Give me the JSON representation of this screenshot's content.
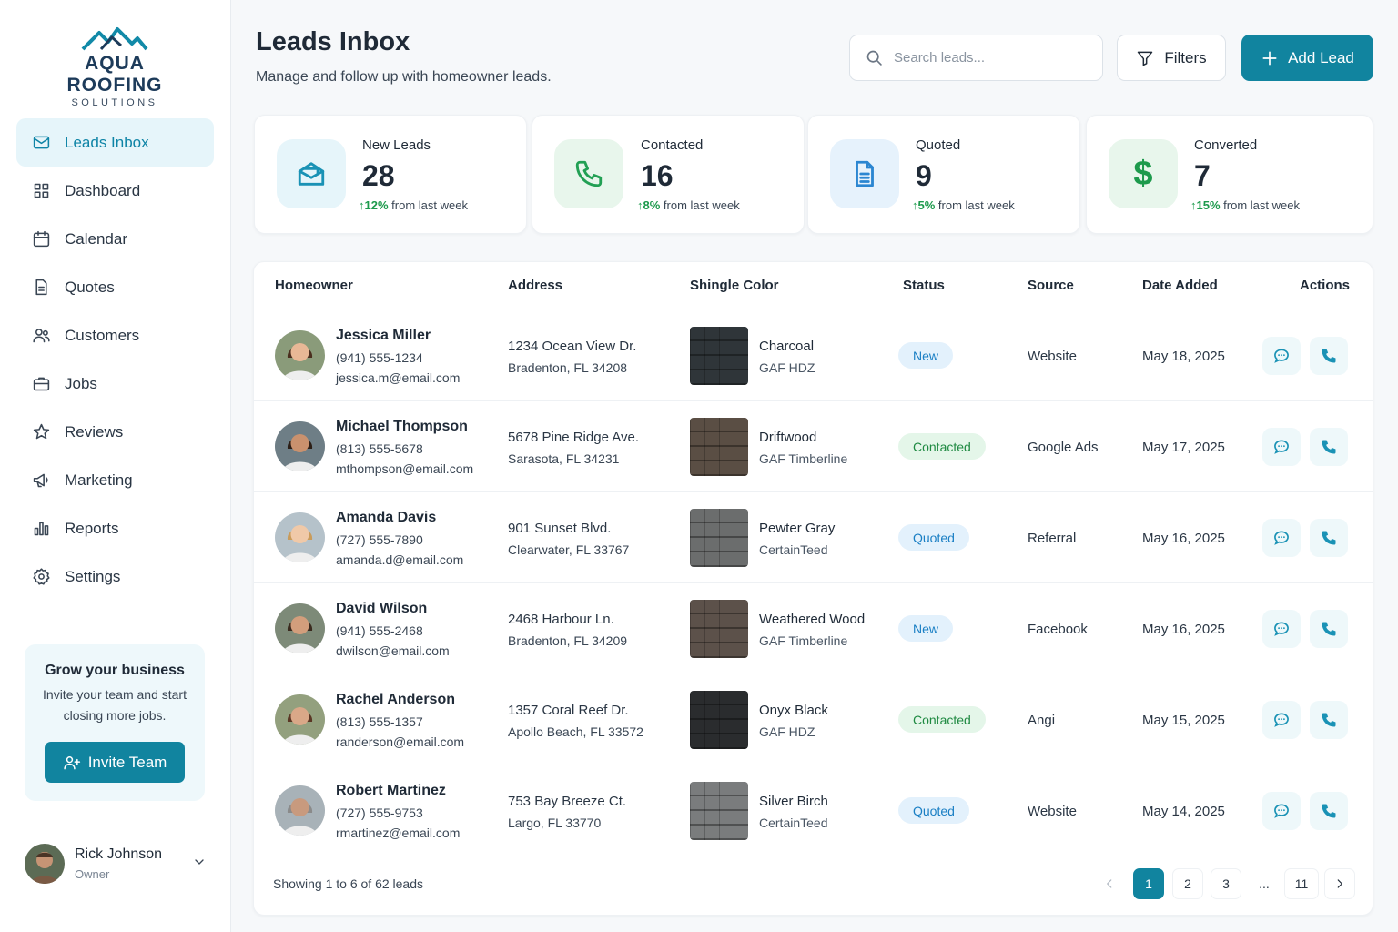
{
  "brand": {
    "name": "AQUA ROOFING",
    "sub": "SOLUTIONS",
    "logo_icon": "mountain-roof-icon"
  },
  "sidebar": {
    "items": [
      {
        "label": "Leads Inbox",
        "icon": "mail-icon",
        "active": true
      },
      {
        "label": "Dashboard",
        "icon": "grid-icon"
      },
      {
        "label": "Calendar",
        "icon": "calendar-icon"
      },
      {
        "label": "Quotes",
        "icon": "document-icon"
      },
      {
        "label": "Customers",
        "icon": "users-icon"
      },
      {
        "label": "Jobs",
        "icon": "briefcase-icon"
      },
      {
        "label": "Reviews",
        "icon": "star-icon"
      },
      {
        "label": "Marketing",
        "icon": "megaphone-icon"
      },
      {
        "label": "Reports",
        "icon": "bar-chart-icon"
      },
      {
        "label": "Settings",
        "icon": "gear-icon"
      }
    ],
    "promo": {
      "title": "Grow your business",
      "text": "Invite your team and start closing more jobs.",
      "button": "Invite Team"
    },
    "user": {
      "name": "Rick Johnson",
      "role": "Owner"
    }
  },
  "header": {
    "title": "Leads Inbox",
    "subtitle": "Manage and follow up with homeowner leads.",
    "search_placeholder": "Search leads...",
    "filters_label": "Filters",
    "add_label": "Add Lead"
  },
  "stats": [
    {
      "label": "New Leads",
      "value": "28",
      "change": "12%",
      "suffix": "from last week",
      "icon": "mail-open-icon"
    },
    {
      "label": "Contacted",
      "value": "16",
      "change": "8%",
      "suffix": "from last week",
      "icon": "phone-icon"
    },
    {
      "label": "Quoted",
      "value": "9",
      "change": "5%",
      "suffix": "from last week",
      "icon": "document-icon"
    },
    {
      "label": "Converted",
      "value": "7",
      "change": "15%",
      "suffix": "from last week",
      "icon": "dollar-icon"
    }
  ],
  "table": {
    "columns": [
      "Homeowner",
      "Address",
      "Shingle Color",
      "Status",
      "Source",
      "Date Added",
      "Actions"
    ],
    "rows": [
      {
        "name": "Jessica Miller",
        "phone": "(941) 555-1234",
        "email": "jessica.m@email.com",
        "addr1": "1234 Ocean View Dr.",
        "addr2": "Bradenton, FL 34208",
        "shingle": "Charcoal",
        "brand": "GAF HDZ",
        "swatch": "#2f3539",
        "status": "New",
        "source": "Website",
        "date": "May 18, 2025"
      },
      {
        "name": "Michael Thompson",
        "phone": "(813) 555-5678",
        "email": "mthompson@email.com",
        "addr1": "5678 Pine Ridge Ave.",
        "addr2": "Sarasota, FL 34231",
        "shingle": "Driftwood",
        "brand": "GAF Timberline",
        "swatch": "#5a4e44",
        "status": "Contacted",
        "source": "Google Ads",
        "date": "May 17, 2025"
      },
      {
        "name": "Amanda Davis",
        "phone": "(727) 555-7890",
        "email": "amanda.d@email.com",
        "addr1": "901 Sunset Blvd.",
        "addr2": "Clearwater, FL 33767",
        "shingle": "Pewter Gray",
        "brand": "CertainTeed",
        "swatch": "#6b6d6d",
        "status": "Quoted",
        "source": "Referral",
        "date": "May 16, 2025"
      },
      {
        "name": "David Wilson",
        "phone": "(941) 555-2468",
        "email": "dwilson@email.com",
        "addr1": "2468 Harbour Ln.",
        "addr2": "Bradenton, FL 34209",
        "shingle": "Weathered Wood",
        "brand": "GAF Timberline",
        "swatch": "#5c514a",
        "status": "New",
        "source": "Facebook",
        "date": "May 16, 2025"
      },
      {
        "name": "Rachel Anderson",
        "phone": "(813) 555-1357",
        "email": "randerson@email.com",
        "addr1": "1357 Coral Reef Dr.",
        "addr2": "Apollo Beach, FL 33572",
        "shingle": "Onyx Black",
        "brand": "GAF HDZ",
        "swatch": "#2a2c2e",
        "status": "Contacted",
        "source": "Angi",
        "date": "May 15, 2025"
      },
      {
        "name": "Robert Martinez",
        "phone": "(727) 555-9753",
        "email": "rmartinez@email.com",
        "addr1": "753 Bay Breeze Ct.",
        "addr2": "Largo, FL 33770",
        "shingle": "Silver Birch",
        "brand": "CertainTeed",
        "swatch": "#7a7c7d",
        "status": "Quoted",
        "source": "Website",
        "date": "May 14, 2025"
      }
    ],
    "footer": "Showing 1 to 6 of 62 leads",
    "pages": [
      "1",
      "2",
      "3",
      "...",
      "11"
    ]
  },
  "colors": {
    "accent": "#11849f",
    "new": "#1a7fc4",
    "contacted": "#1f8a42"
  }
}
